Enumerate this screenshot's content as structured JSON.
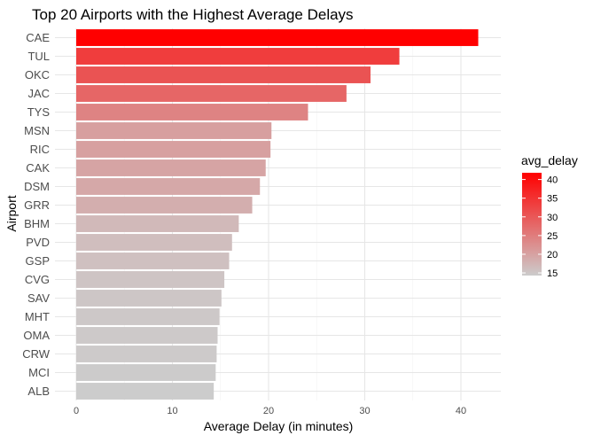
{
  "chart_data": {
    "type": "bar",
    "orientation": "horizontal",
    "title": "Top 20 Airports with the Highest Average Delays",
    "xlabel": "Average Delay (in minutes)",
    "ylabel": "Airport",
    "xlim": [
      0,
      43
    ],
    "xticks": [
      0,
      10,
      20,
      30,
      40
    ],
    "grid": true,
    "categories": [
      "CAE",
      "TUL",
      "OKC",
      "JAC",
      "TYS",
      "MSN",
      "RIC",
      "CAK",
      "DSM",
      "GRR",
      "BHM",
      "PVD",
      "GSP",
      "CVG",
      "SAV",
      "MHT",
      "OMA",
      "CRW",
      "MCI",
      "ALB"
    ],
    "values": [
      41.8,
      33.6,
      30.6,
      28.1,
      24.1,
      20.3,
      20.2,
      19.7,
      19.1,
      18.3,
      16.9,
      16.2,
      15.9,
      15.4,
      15.1,
      14.9,
      14.7,
      14.6,
      14.5,
      14.3
    ],
    "legend": {
      "title": "avg_delay",
      "position": "right",
      "ticks": [
        40,
        35,
        30,
        25,
        20,
        15
      ],
      "range": [
        14.3,
        41.8
      ],
      "color_low": "#cccccc",
      "color_high": "#ff0000"
    }
  }
}
